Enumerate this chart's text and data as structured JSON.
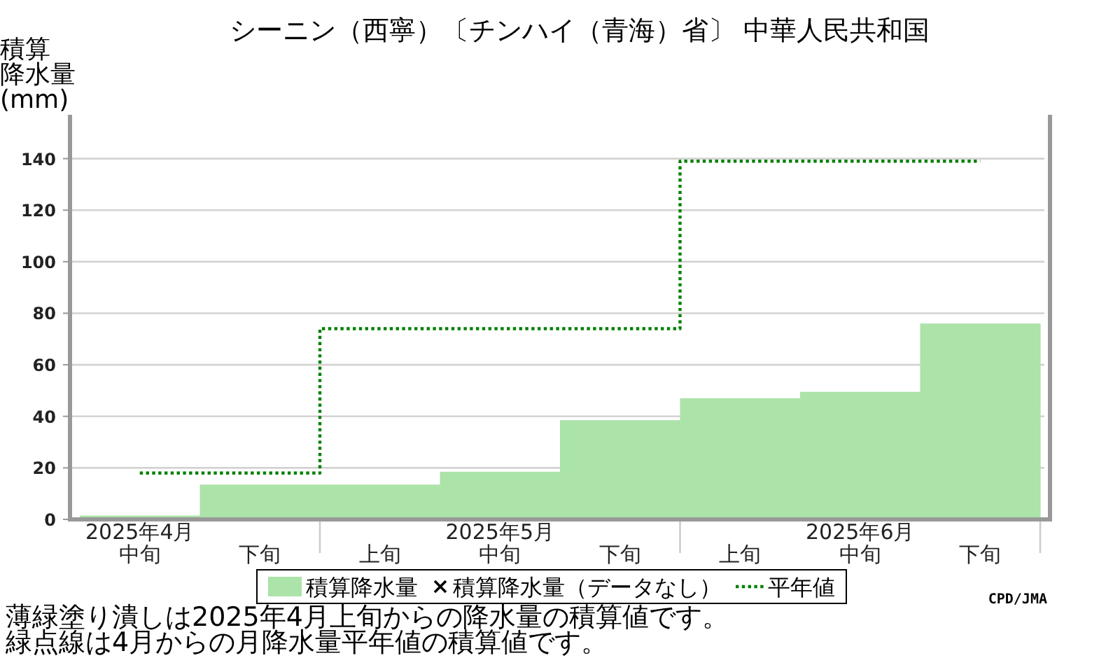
{
  "chart_data": {
    "type": "bar",
    "title": "シーニン（西寧）〔チンハイ（青海）省〕 中華人民共和国",
    "ylabel": "積算降水量(mm)",
    "categories": [
      "2025年4月中旬",
      "下旬",
      "上旬",
      "2025年5月中旬",
      "下旬",
      "上旬",
      "2025年6月中旬",
      "下旬"
    ],
    "series": [
      {
        "name": "積算降水量",
        "color": "#abe3a9",
        "values": [
          1.5,
          13.5,
          13.5,
          18.5,
          38.5,
          47,
          49.5,
          76
        ]
      },
      {
        "name": "積算降水量（データなし）",
        "type": "scatter",
        "marker": "cross",
        "color": "#000000",
        "values": [
          null,
          null,
          null,
          null,
          null,
          null,
          null,
          null
        ]
      },
      {
        "name": "平年値",
        "type": "step",
        "line_style": "dotted",
        "color": "#008000",
        "values": [
          18,
          18,
          74,
          74,
          74,
          139,
          139,
          139
        ]
      }
    ],
    "ylim": [
      0,
      157
    ],
    "yticks": [
      0,
      20,
      40,
      60,
      80,
      100,
      120,
      140
    ],
    "grid": "y",
    "legend": "bottom",
    "annotations": [
      "CPD/JMA",
      "薄緑塗り潰しは2025年4月上旬からの降水量の積算値です。",
      "緑点線は4月からの月降水量平年値の積算値です。"
    ]
  }
}
